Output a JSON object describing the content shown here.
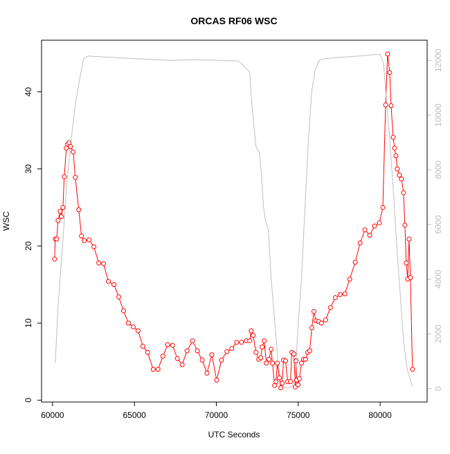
{
  "chart_data": {
    "type": "line",
    "title": "ORCAS RF06 WSC",
    "x_label": "UTC Seconds",
    "y_label": "WSC",
    "xlim": [
      59328,
      82872
    ],
    "ylim": [
      -0.24,
      46.7
    ],
    "y2lim": [
      -490,
      12740
    ],
    "xticks": [
      60000,
      65000,
      70000,
      75000,
      80000
    ],
    "yticks": [
      0,
      10,
      20,
      30,
      40
    ],
    "y2ticks": [
      0,
      2000,
      4000,
      6000,
      8000,
      10000,
      12000
    ],
    "y2_color": "#bebebe",
    "series": [
      {
        "color": "#ff0000",
        "axis": "y",
        "markers": true,
        "x": [
          60126,
          60168,
          60253,
          60337,
          60463,
          60547,
          60632,
          60716,
          60842,
          60926,
          61010,
          61095,
          61263,
          61389,
          61600,
          61768,
          61937,
          62231,
          62526,
          62821,
          63115,
          63410,
          63747,
          64042,
          64336,
          64631,
          64926,
          65220,
          65515,
          65810,
          66147,
          66441,
          66736,
          67031,
          67325,
          67620,
          67915,
          68210,
          68546,
          68841,
          69136,
          69430,
          69725,
          70020,
          70315,
          70651,
          70946,
          71241,
          71535,
          71830,
          72041,
          72125,
          72251,
          72420,
          72588,
          72714,
          72798,
          72925,
          73051,
          73219,
          73346,
          73430,
          73556,
          73640,
          73725,
          73851,
          73935,
          74019,
          74104,
          74230,
          74356,
          74525,
          74609,
          74735,
          74819,
          74861,
          74903,
          74988,
          75072,
          75198,
          75324,
          75451,
          75577,
          75703,
          75830,
          75956,
          76082,
          76251,
          76419,
          76672,
          76966,
          77261,
          77556,
          77850,
          78145,
          78482,
          78777,
          79071,
          79366,
          79661,
          79955,
          80166,
          80334,
          80461,
          80587,
          80671,
          80797,
          80882,
          80966,
          81050,
          81176,
          81303,
          81429,
          81513,
          81597,
          81682,
          81766,
          81850,
          81976
        ],
        "values": [
          18.3,
          20.9,
          20.9,
          23.3,
          24.5,
          23.8,
          25.0,
          29.0,
          32.7,
          33.2,
          33.4,
          32.9,
          32.2,
          28.9,
          24.7,
          21.3,
          20.7,
          20.8,
          19.9,
          17.8,
          17.7,
          15.4,
          15.0,
          13.4,
          11.6,
          10.0,
          9.5,
          9.0,
          7.0,
          6.2,
          4.0,
          4.0,
          5.7,
          7.2,
          7.1,
          5.4,
          4.6,
          6.4,
          7.7,
          6.4,
          5.2,
          3.5,
          5.9,
          2.6,
          5.2,
          6.3,
          6.7,
          7.5,
          7.5,
          7.7,
          7.7,
          9.0,
          8.4,
          6.2,
          5.3,
          5.5,
          6.9,
          7.7,
          4.8,
          5.3,
          6.6,
          4.8,
          1.9,
          2.4,
          4.8,
          2.9,
          1.6,
          2.2,
          5.2,
          5.1,
          2.4,
          2.4,
          6.2,
          6.0,
          1.7,
          5.1,
          2.6,
          2.0,
          2.8,
          4.8,
          5.3,
          5.3,
          6.2,
          6.4,
          9.4,
          11.5,
          10.3,
          10.2,
          10.0,
          10.4,
          12.0,
          13.3,
          13.7,
          13.8,
          15.7,
          17.9,
          20.4,
          22.1,
          21.4,
          22.6,
          23.0,
          25.0,
          38.3,
          44.9,
          42.5,
          38.2,
          34.1,
          32.7,
          31.7,
          30.0,
          29.2,
          28.7,
          26.9,
          22.7,
          17.8,
          15.7,
          20.9,
          15.9,
          4.0
        ]
      },
      {
        "color": "#bebebe",
        "axis": "y2",
        "markers": false,
        "x": [
          60168,
          60337,
          60589,
          60884,
          61137,
          61389,
          61642,
          61895,
          62189,
          63115,
          65220,
          67325,
          68588,
          70272,
          71325,
          71535,
          71746,
          72041,
          72167,
          72293,
          72420,
          72504,
          72630,
          72756,
          72883,
          73009,
          73177,
          73346,
          73556,
          73767,
          73935,
          74146,
          74398,
          74651,
          74819,
          74988,
          75198,
          75409,
          75619,
          75830,
          76040,
          76293,
          76587,
          77429,
          78692,
          79998,
          80208,
          80376,
          80587,
          80797,
          81008,
          81218,
          81429,
          81640,
          81892,
          81976
        ],
        "values": [
          940,
          3020,
          5050,
          7590,
          9110,
          10380,
          11270,
          12060,
          12160,
          12130,
          12060,
          12000,
          12030,
          12000,
          11980,
          11900,
          11750,
          11570,
          10380,
          9620,
          8860,
          8730,
          8650,
          7840,
          6620,
          6120,
          5810,
          4040,
          2510,
          990,
          230,
          30,
          30,
          80,
          480,
          2260,
          4040,
          6570,
          9110,
          10890,
          11650,
          12000,
          12060,
          12110,
          12160,
          12230,
          11900,
          10630,
          9110,
          7340,
          5300,
          3530,
          1750,
          740,
          230,
          80
        ]
      }
    ]
  }
}
